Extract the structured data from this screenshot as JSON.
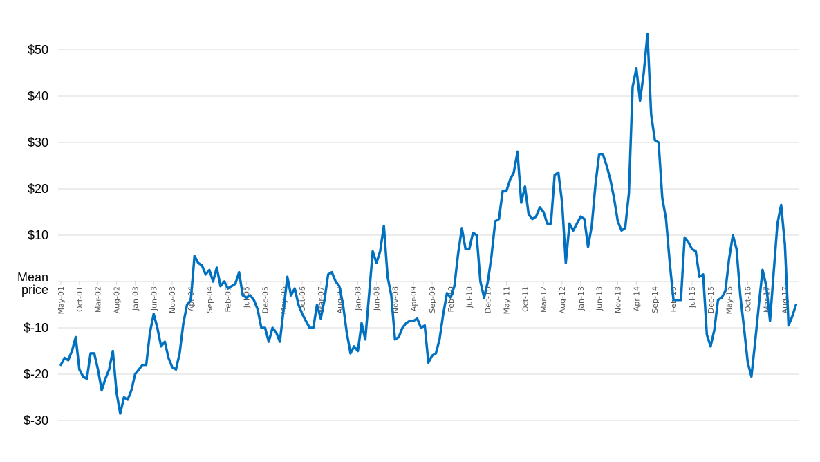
{
  "chart_data": {
    "type": "line",
    "title": "",
    "xlabel": "",
    "ylabel": "Mean price",
    "ylim": [
      -30,
      55
    ],
    "yticks": [
      50,
      40,
      30,
      20,
      10,
      0,
      -10,
      -20,
      -30
    ],
    "ytick_labels": [
      "$50",
      "$40",
      "$30",
      "$20",
      "$10",
      "Mean price",
      "$-10",
      "$-20",
      "$-30"
    ],
    "grid": true,
    "legend": null,
    "x_start": "May-01",
    "x_step_months": 1,
    "x_tick_labels": [
      "May-01",
      "Oct-01",
      "Mar-02",
      "Aug-02",
      "Jan-03",
      "Jun-03",
      "Nov-03",
      "Apr-04",
      "Sep-04",
      "Feb-05",
      "Jul-05",
      "Dec-05",
      "May-06",
      "Oct-06",
      "Mar-07",
      "Aug-07",
      "Jan-08",
      "Jun-08",
      "Nov-08",
      "Apr-09",
      "Sep-09",
      "Feb-10",
      "Jul-10",
      "Dec-10",
      "May-11",
      "Oct-11",
      "Mar-12",
      "Aug-12",
      "Jan-13",
      "Jun-13",
      "Nov-13",
      "Apr-14",
      "Sep-14",
      "Feb-15",
      "Jul-15",
      "Dec-15",
      "May-16",
      "Oct-16",
      "Mar-17",
      "Aug-17"
    ],
    "series": [
      {
        "name": "Mean price",
        "color": "#0070C0",
        "values": [
          -18,
          -16.5,
          -17,
          -15,
          -12,
          -19,
          -20.5,
          -21,
          -15.5,
          -15.5,
          -19,
          -23.5,
          -21,
          -19,
          -15,
          -24,
          -28.5,
          -25,
          -25.5,
          -23.5,
          -20,
          -19,
          -18,
          -18,
          -11,
          -7,
          -10,
          -14,
          -13,
          -16.5,
          -18.5,
          -19,
          -15.5,
          -9,
          -5,
          -4,
          5.5,
          4,
          3.5,
          1.5,
          2.5,
          0,
          3,
          -1,
          0,
          -1.5,
          -1,
          -0.5,
          2,
          -3,
          -3.5,
          -3,
          -4,
          -6,
          -10,
          -10,
          -13,
          -10,
          -11,
          -13,
          -6,
          1,
          -3,
          -1.5,
          -5,
          -7,
          -8.5,
          -10,
          -10,
          -5,
          -8,
          -4,
          1.5,
          2,
          0,
          -1,
          -5,
          -11,
          -15.5,
          -14,
          -15,
          -9,
          -12.5,
          -3,
          6.5,
          4,
          6.5,
          12,
          1,
          -3,
          -12.5,
          -12,
          -10,
          -9,
          -8.5,
          -8.5,
          -8,
          -10,
          -9.5,
          -17.5,
          -16,
          -15.5,
          -12.5,
          -7,
          -2.5,
          -3.5,
          -1,
          6,
          11.5,
          7,
          7,
          10.5,
          10,
          0,
          -3.5,
          0,
          5.5,
          13,
          13.5,
          19.5,
          19.5,
          22,
          23.5,
          28,
          17,
          20.5,
          14.5,
          13.5,
          14,
          16,
          15,
          12.5,
          12.5,
          23,
          23.5,
          17,
          4,
          12.5,
          11,
          12.5,
          14,
          13.5,
          7.5,
          12,
          21,
          27.5,
          27.5,
          25,
          22,
          18,
          13,
          11,
          11.5,
          19,
          42,
          46,
          39,
          45,
          53.5,
          36,
          30.5,
          30,
          18,
          13.5,
          4,
          -4,
          -4,
          -4,
          9.5,
          8.5,
          7,
          6.5,
          1,
          1.5,
          -11.5,
          -14,
          -10.5,
          -4,
          -3.5,
          -2,
          5,
          10,
          7,
          -3,
          -10,
          -17.5,
          -20.5,
          -13,
          -5,
          2.5,
          -1,
          -8.5,
          2,
          12.5,
          16.5,
          8,
          -9.5,
          -7.5,
          -5
        ]
      }
    ]
  },
  "axis": {
    "ylabel_line1": "Mean",
    "ylabel_line2": "price"
  }
}
